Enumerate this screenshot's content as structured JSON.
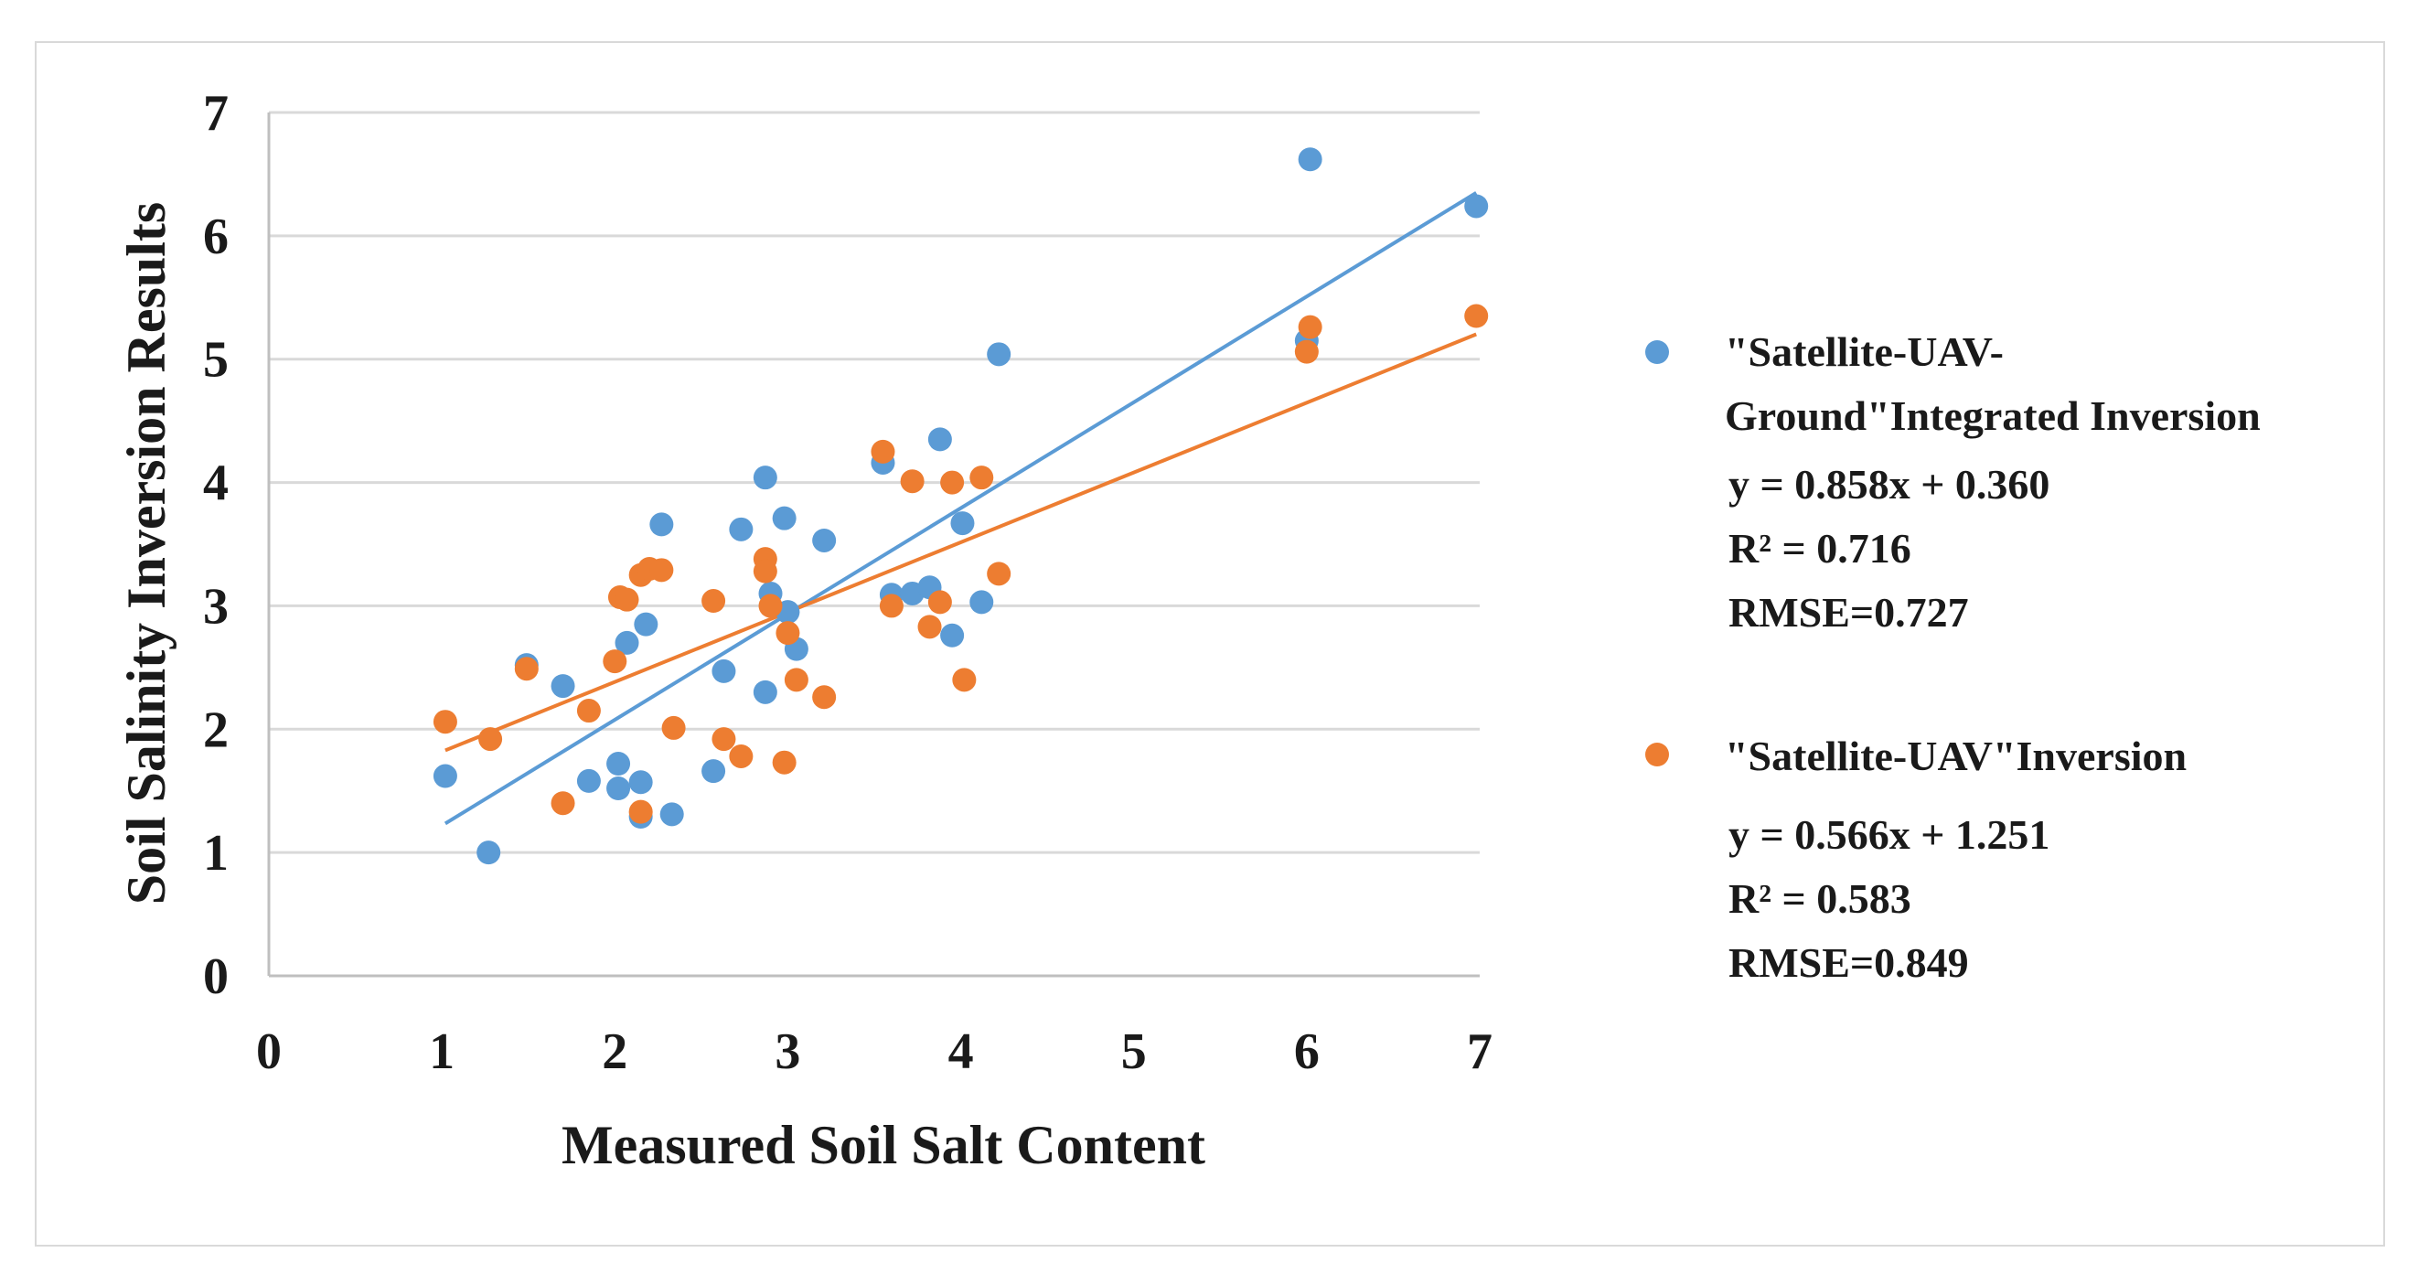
{
  "chart_data": {
    "type": "scatter",
    "xlabel": "Measured Soil Salt Content",
    "ylabel": "Soil Salinity Inversion Results",
    "xlim": [
      0,
      7
    ],
    "ylim": [
      0,
      7
    ],
    "xticks": [
      "0",
      "1",
      "2",
      "3",
      "4",
      "5",
      "6",
      "7"
    ],
    "yticks": [
      "0",
      "1",
      "2",
      "3",
      "4",
      "5",
      "6",
      "7"
    ],
    "grid": "horizontal",
    "legend_position": "right",
    "series": [
      {
        "name_lines": [
          "\"Satellite-UAV-",
          "Ground\"Integrated Inversion"
        ],
        "color": "#5b9bd5",
        "equation": "y = 0.858x + 0.360",
        "r2": "R² = 0.716",
        "rmse": "RMSE=0.727",
        "trend": {
          "slope": 0.858,
          "intercept": 0.36,
          "x_range": [
            1.02,
            6.98
          ]
        },
        "points": [
          [
            1.02,
            1.62
          ],
          [
            1.27,
            1.0
          ],
          [
            1.49,
            2.52
          ],
          [
            1.7,
            2.35
          ],
          [
            1.85,
            1.58
          ],
          [
            2.02,
            1.72
          ],
          [
            2.02,
            1.52
          ],
          [
            2.07,
            2.7
          ],
          [
            2.15,
            1.29
          ],
          [
            2.15,
            1.57
          ],
          [
            2.18,
            2.85
          ],
          [
            2.27,
            3.66
          ],
          [
            2.33,
            1.31
          ],
          [
            2.57,
            1.66
          ],
          [
            2.63,
            2.47
          ],
          [
            2.73,
            3.62
          ],
          [
            2.87,
            4.04
          ],
          [
            2.87,
            2.3
          ],
          [
            2.9,
            3.1
          ],
          [
            2.98,
            3.71
          ],
          [
            3.0,
            2.95
          ],
          [
            3.05,
            2.65
          ],
          [
            3.21,
            3.53
          ],
          [
            3.55,
            4.16
          ],
          [
            3.6,
            3.09
          ],
          [
            3.72,
            3.1
          ],
          [
            3.82,
            3.15
          ],
          [
            3.88,
            4.35
          ],
          [
            3.95,
            2.76
          ],
          [
            4.01,
            3.67
          ],
          [
            4.12,
            3.03
          ],
          [
            4.22,
            5.04
          ],
          [
            6.0,
            5.15
          ],
          [
            6.02,
            6.62
          ],
          [
            6.98,
            6.24
          ]
        ]
      },
      {
        "name_lines": [
          "\"Satellite-UAV\"Inversion"
        ],
        "color": "#ed7d31",
        "equation": "y = 0.566x + 1.251",
        "r2": "R² = 0.583",
        "rmse": "RMSE=0.849",
        "trend": {
          "slope": 0.566,
          "intercept": 1.251,
          "x_range": [
            1.02,
            6.98
          ]
        },
        "points": [
          [
            1.02,
            2.06
          ],
          [
            1.28,
            1.92
          ],
          [
            1.49,
            2.49
          ],
          [
            1.7,
            1.4
          ],
          [
            1.85,
            2.15
          ],
          [
            2.0,
            2.55
          ],
          [
            2.03,
            3.07
          ],
          [
            2.07,
            3.05
          ],
          [
            2.15,
            1.33
          ],
          [
            2.15,
            3.25
          ],
          [
            2.2,
            3.3
          ],
          [
            2.27,
            3.29
          ],
          [
            2.34,
            2.01
          ],
          [
            2.57,
            3.04
          ],
          [
            2.63,
            1.92
          ],
          [
            2.73,
            1.78
          ],
          [
            2.87,
            3.38
          ],
          [
            2.87,
            3.28
          ],
          [
            2.9,
            3.0
          ],
          [
            2.98,
            1.73
          ],
          [
            3.0,
            2.78
          ],
          [
            3.05,
            2.4
          ],
          [
            3.21,
            2.26
          ],
          [
            3.55,
            4.25
          ],
          [
            3.6,
            3.0
          ],
          [
            3.72,
            4.01
          ],
          [
            3.82,
            2.83
          ],
          [
            3.88,
            3.03
          ],
          [
            3.95,
            4.0
          ],
          [
            4.02,
            2.4
          ],
          [
            4.12,
            4.04
          ],
          [
            4.22,
            3.26
          ],
          [
            6.0,
            5.06
          ],
          [
            6.02,
            5.26
          ],
          [
            6.98,
            5.35
          ]
        ]
      }
    ]
  }
}
